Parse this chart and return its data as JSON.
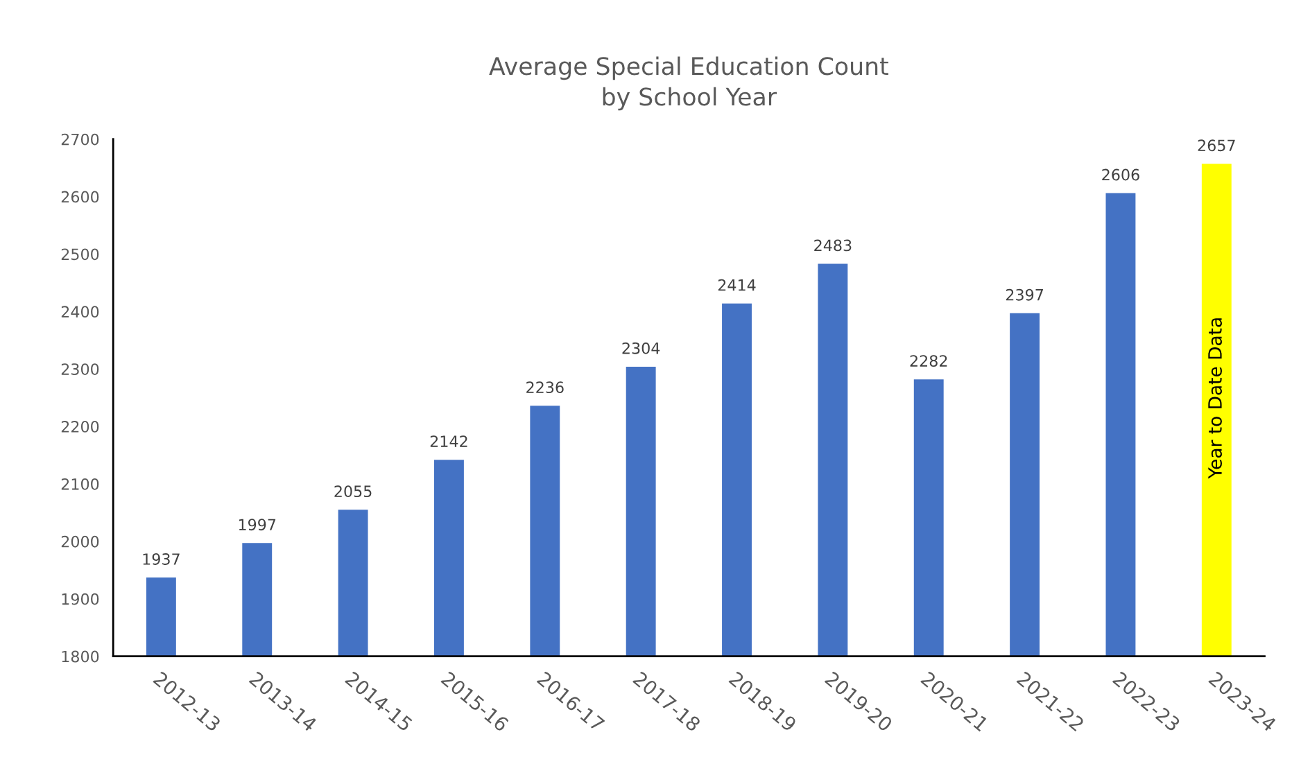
{
  "chart_data": {
    "type": "bar",
    "title": "Average Special Education Count\nby School Year",
    "categories": [
      "2012-13",
      "2013-14",
      "2014-15",
      "2015-16",
      "2016-17",
      "2017-18",
      "2018-19",
      "2019-20",
      "2020-21",
      "2021-22",
      "2022-23",
      "2023-24"
    ],
    "values": [
      1937,
      1997,
      2055,
      2142,
      2236,
      2304,
      2414,
      2483,
      2282,
      2397,
      2606,
      2657
    ],
    "colors": [
      "#4472c4",
      "#4472c4",
      "#4472c4",
      "#4472c4",
      "#4472c4",
      "#4472c4",
      "#4472c4",
      "#4472c4",
      "#4472c4",
      "#4472c4",
      "#4472c4",
      "#ffff00"
    ],
    "ylim": [
      1800,
      2700
    ],
    "yticks": [
      1800,
      1900,
      2000,
      2100,
      2200,
      2300,
      2400,
      2500,
      2600,
      2700
    ],
    "grid": false,
    "data_labels": true,
    "annotations": [
      "Year to Date Data"
    ]
  }
}
